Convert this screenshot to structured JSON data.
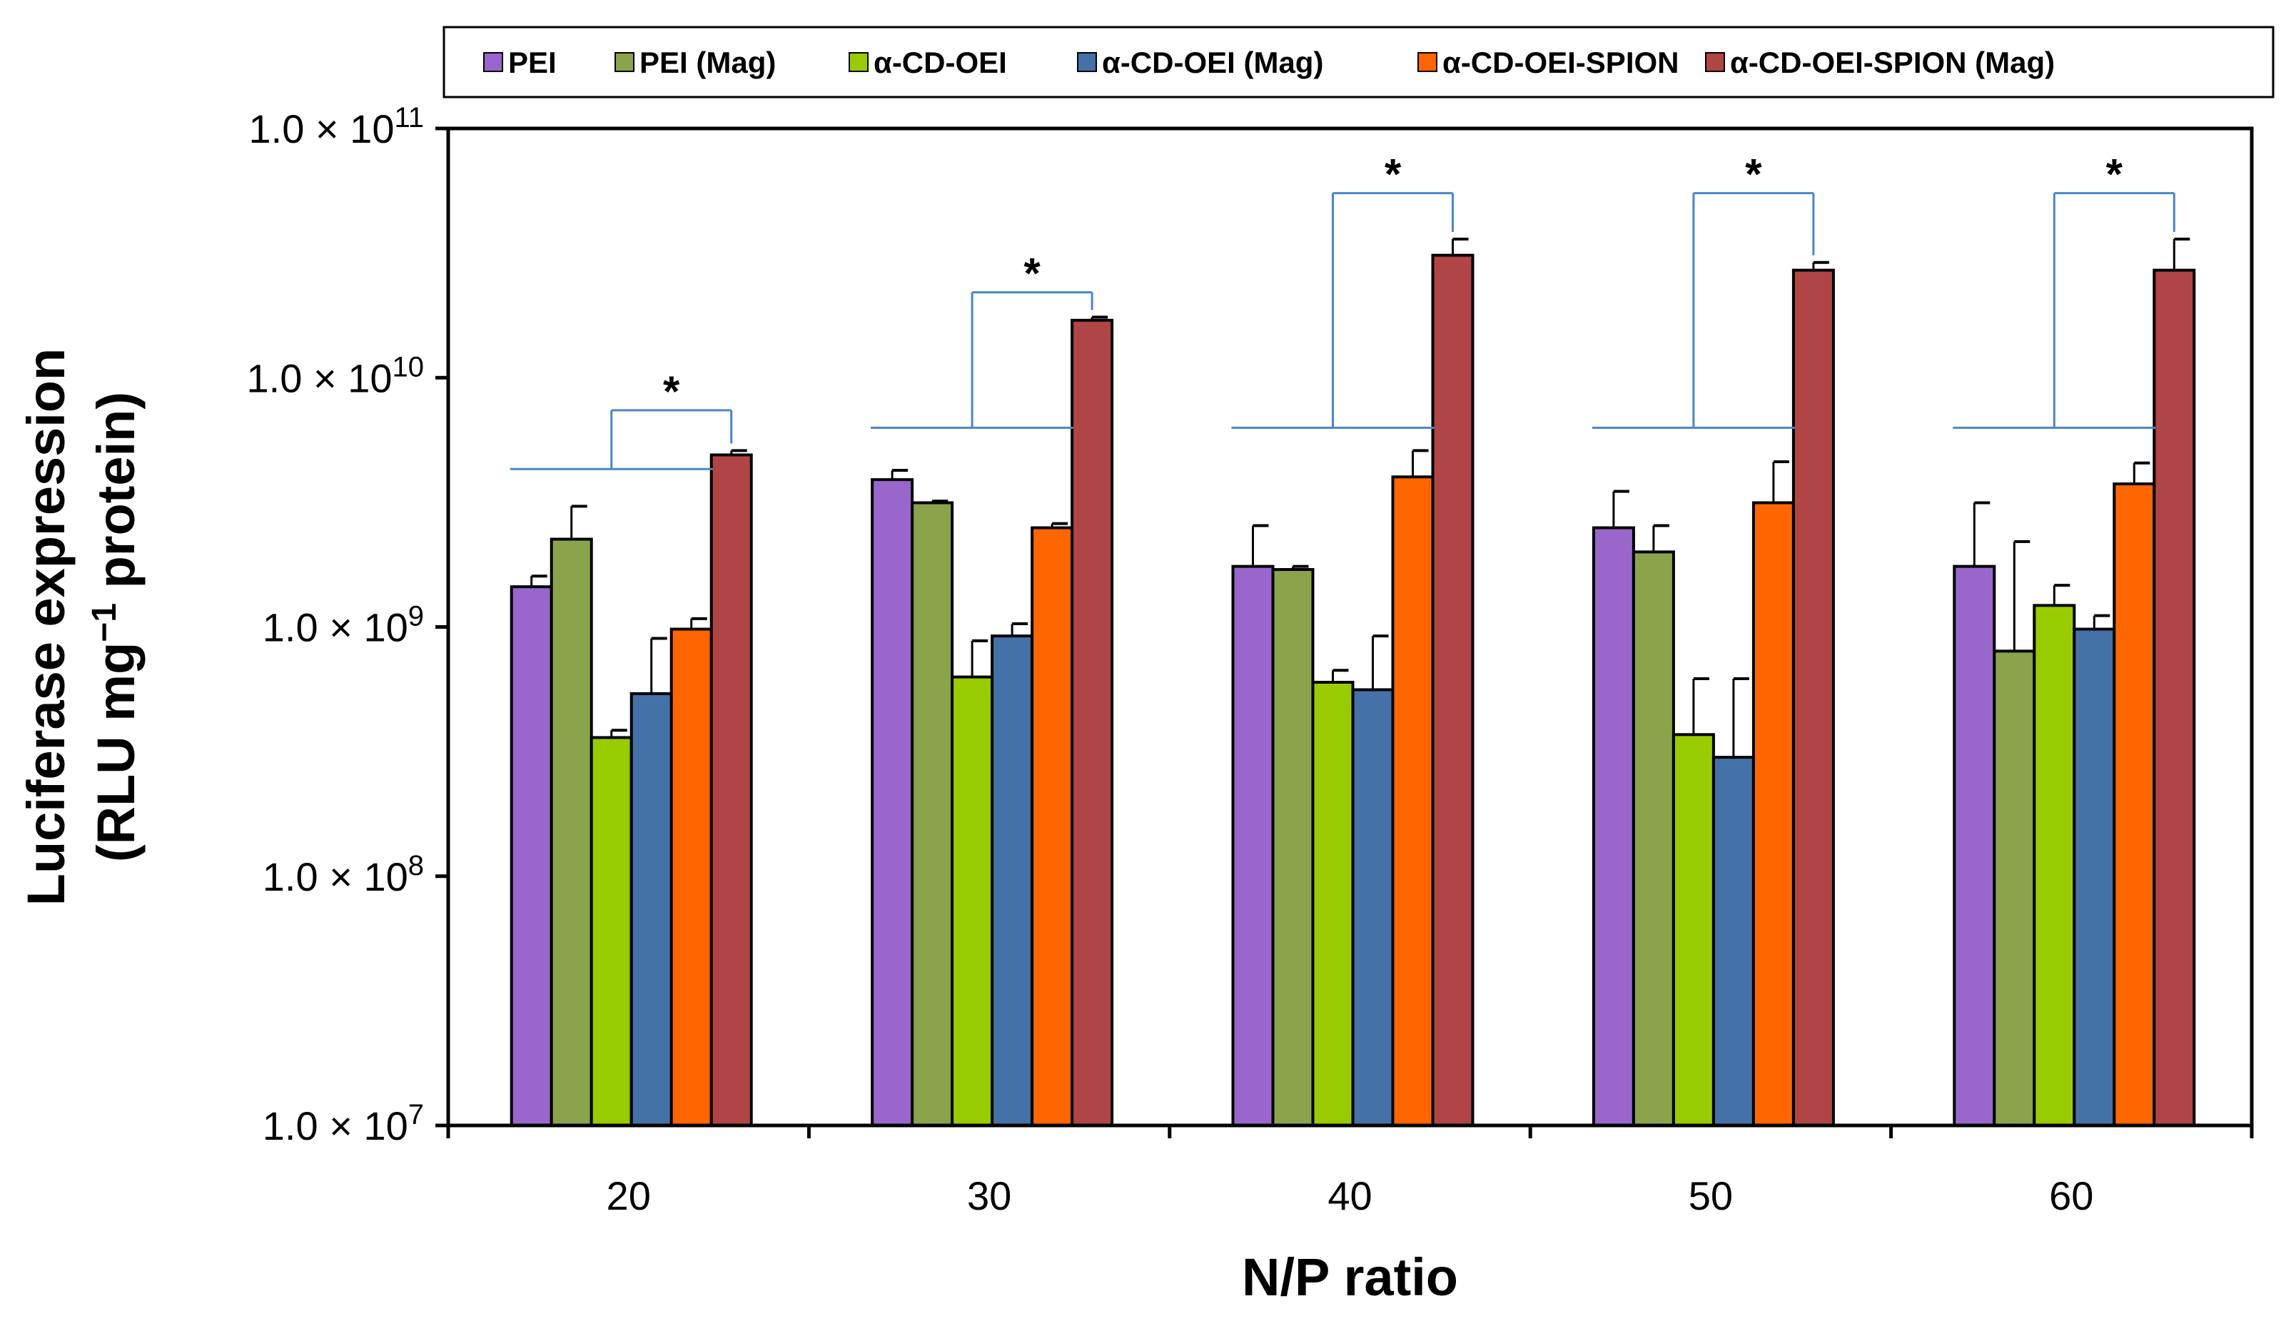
{
  "chart_data": {
    "type": "bar",
    "xlabel": "N/P ratio",
    "ylabel_line1": "Luciferase expression",
    "ylabel_line2_pre": "(RLU mg",
    "ylabel_line2_sup": "−1",
    "ylabel_line2_post": " protein)",
    "y_scale": "log",
    "ylim": [
      10000000,
      100000000000
    ],
    "y_ticks": [
      {
        "value": 10000000,
        "mantissa": "1.0 × 10",
        "exp": "7"
      },
      {
        "value": 100000000,
        "mantissa": "1.0 × 10",
        "exp": "8"
      },
      {
        "value": 1000000000,
        "mantissa": "1.0 × 10",
        "exp": "9"
      },
      {
        "value": 10000000000,
        "mantissa": "1.0 × 10",
        "exp": "10"
      },
      {
        "value": 100000000000,
        "mantissa": "1.0 × 10",
        "exp": "11"
      }
    ],
    "categories": [
      "20",
      "30",
      "40",
      "50",
      "60"
    ],
    "series": [
      {
        "name": "PEI",
        "color": "#9966CC",
        "values": [
          1450000000,
          3900000000,
          1750000000,
          2500000000,
          1750000000
        ],
        "errors": [
          150000000,
          350000000,
          800000000,
          1000000000,
          1400000000
        ]
      },
      {
        "name": "PEI (Mag)",
        "color": "#8BA34A",
        "values": [
          2250000000,
          3150000000,
          1700000000,
          2000000000,
          800000000
        ],
        "errors": [
          800000000,
          50000000,
          50000000,
          550000000,
          1400000000
        ]
      },
      {
        "name": "α-CD-OEI",
        "color": "#99CC00",
        "values": [
          360000000,
          630000000,
          600000000,
          370000000,
          1220000000
        ],
        "errors": [
          25000000,
          250000000,
          70000000,
          250000000,
          250000000
        ]
      },
      {
        "name": "α-CD-OEI (Mag)",
        "color": "#4472A8",
        "values": [
          540000000,
          920000000,
          560000000,
          300000000,
          980000000
        ],
        "errors": [
          360000000,
          110000000,
          360000000,
          320000000,
          130000000
        ]
      },
      {
        "name": "α-CD-OEI-SPION",
        "color": "#FF6600",
        "values": [
          980000000,
          2500000000,
          4000000000,
          3150000000,
          3750000000
        ],
        "errors": [
          100000000,
          100000000,
          1100000000,
          1450000000,
          800000000
        ]
      },
      {
        "name": "α-CD-OEI-SPION (Mag)",
        "color": "#B04545",
        "values": [
          4900000000,
          17000000000,
          31000000000,
          27000000000,
          27000000000
        ],
        "errors": [
          200000000,
          500000000,
          5000000000,
          2000000000,
          9000000000
        ]
      }
    ],
    "annotations": [
      {
        "category": "20",
        "label": "*",
        "top_value": 7400000000,
        "base_value": 4300000000
      },
      {
        "category": "30",
        "label": "*",
        "top_value": 22000000000,
        "base_value": 6300000000
      },
      {
        "category": "40",
        "label": "*",
        "top_value": 55000000000,
        "base_value": 6300000000
      },
      {
        "category": "50",
        "label": "*",
        "top_value": 55000000000,
        "base_value": 6300000000
      },
      {
        "category": "60",
        "label": "*",
        "top_value": 55000000000,
        "base_value": 6300000000
      }
    ],
    "legend_position": "top",
    "grid": false
  }
}
